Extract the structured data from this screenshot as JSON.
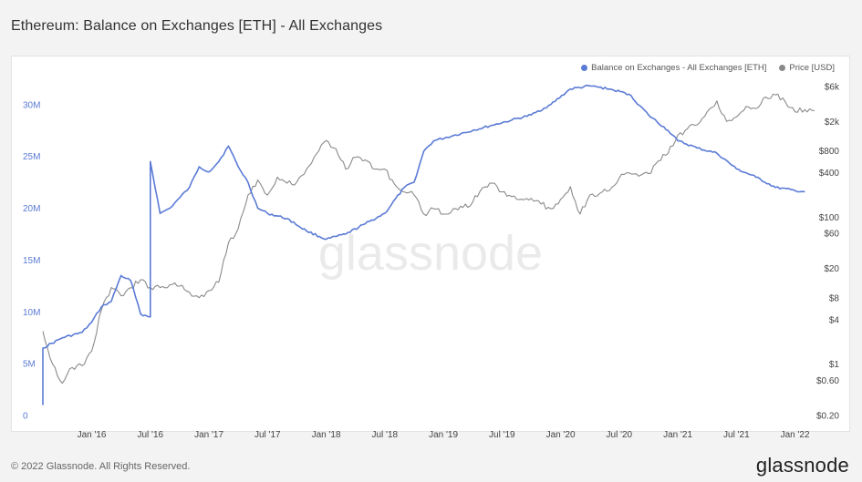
{
  "header": {
    "title": "Ethereum: Balance on Exchanges [ETH] - All Exchanges"
  },
  "footer": {
    "copyright": "© 2022 Glassnode. All Rights Reserved.",
    "logo_text": "glassnode"
  },
  "watermark": "glassnode",
  "chart_data": {
    "type": "line",
    "title": "Ethereum: Balance on Exchanges [ETH] - All Exchanges",
    "x_ticks": [
      "Jan '16",
      "Jul '16",
      "Jan '17",
      "Jul '17",
      "Jan '18",
      "Jul '18",
      "Jan '19",
      "Jul '19",
      "Jan '20",
      "Jul '20",
      "Jan '21",
      "Jul '21",
      "Jan '22"
    ],
    "x_range": [
      "2015-08",
      "2022-03"
    ],
    "y_left": {
      "ticks": [
        "0",
        "5M",
        "10M",
        "15M",
        "20M",
        "25M",
        "30M"
      ],
      "ylim": [
        0,
        32000000
      ],
      "color": "#5b7bd5"
    },
    "y_right": {
      "scale": "log",
      "ticks": [
        "$0.20",
        "$0.60",
        "$1",
        "$4",
        "$8",
        "$20",
        "$60",
        "$100",
        "$400",
        "$800",
        "$2k",
        "$6k"
      ],
      "tick_values": [
        0.2,
        0.6,
        1,
        4,
        8,
        20,
        60,
        100,
        400,
        800,
        2000,
        6000
      ],
      "ylim": [
        0.2,
        6500
      ]
    },
    "legend": {
      "placement": "top-right"
    },
    "grid": false,
    "series": [
      {
        "name": "Balance on Exchanges - All Exchanges [ETH]",
        "axis": "left",
        "color": "#5b7bd5",
        "points": [
          [
            "2015-08",
            1000000
          ],
          [
            "2015-08",
            6500000
          ],
          [
            "2015-10",
            7500000
          ],
          [
            "2015-12",
            8000000
          ],
          [
            "2016-01",
            9000000
          ],
          [
            "2016-02",
            10500000
          ],
          [
            "2016-03",
            11000000
          ],
          [
            "2016-04",
            13500000
          ],
          [
            "2016-05",
            13000000
          ],
          [
            "2016-06",
            9800000
          ],
          [
            "2016-07",
            9500000
          ],
          [
            "2016-07",
            24500000
          ],
          [
            "2016-08",
            19500000
          ],
          [
            "2016-09",
            20000000
          ],
          [
            "2016-10",
            21000000
          ],
          [
            "2016-11",
            22000000
          ],
          [
            "2016-12",
            24000000
          ],
          [
            "2017-01",
            23500000
          ],
          [
            "2017-02",
            24500000
          ],
          [
            "2017-03",
            26000000
          ],
          [
            "2017-04",
            24000000
          ],
          [
            "2017-05",
            22500000
          ],
          [
            "2017-06",
            20000000
          ],
          [
            "2017-07",
            19500000
          ],
          [
            "2017-09",
            19000000
          ],
          [
            "2017-11",
            17800000
          ],
          [
            "2018-01",
            17000000
          ],
          [
            "2018-03",
            17500000
          ],
          [
            "2018-05",
            18500000
          ],
          [
            "2018-07",
            19500000
          ],
          [
            "2018-09",
            22000000
          ],
          [
            "2018-10",
            22500000
          ],
          [
            "2018-11",
            25500000
          ],
          [
            "2018-12",
            26500000
          ],
          [
            "2019-02",
            27000000
          ],
          [
            "2019-04",
            27500000
          ],
          [
            "2019-06",
            28000000
          ],
          [
            "2019-08",
            28500000
          ],
          [
            "2019-10",
            29000000
          ],
          [
            "2019-12",
            30000000
          ],
          [
            "2020-02",
            31500000
          ],
          [
            "2020-04",
            31800000
          ],
          [
            "2020-06",
            31500000
          ],
          [
            "2020-08",
            31000000
          ],
          [
            "2020-10",
            29000000
          ],
          [
            "2020-12",
            27500000
          ],
          [
            "2021-01",
            26500000
          ],
          [
            "2021-03",
            25800000
          ],
          [
            "2021-05",
            25300000
          ],
          [
            "2021-07",
            23800000
          ],
          [
            "2021-09",
            23000000
          ],
          [
            "2021-11",
            22000000
          ],
          [
            "2022-01",
            21700000
          ],
          [
            "2022-02",
            21600000
          ]
        ]
      },
      {
        "name": "Price [USD]",
        "axis": "right",
        "color": "#8a8a8a",
        "points": [
          [
            "2015-08",
            2.8
          ],
          [
            "2015-09",
            1.0
          ],
          [
            "2015-10",
            0.55
          ],
          [
            "2015-11",
            0.9
          ],
          [
            "2015-12",
            0.95
          ],
          [
            "2016-01",
            1.5
          ],
          [
            "2016-02",
            5.5
          ],
          [
            "2016-03",
            11
          ],
          [
            "2016-04",
            8.5
          ],
          [
            "2016-05",
            11
          ],
          [
            "2016-06",
            14
          ],
          [
            "2016-07",
            11
          ],
          [
            "2016-08",
            11
          ],
          [
            "2016-09",
            12
          ],
          [
            "2016-10",
            11.5
          ],
          [
            "2016-11",
            9.5
          ],
          [
            "2016-12",
            8
          ],
          [
            "2017-01",
            10
          ],
          [
            "2017-02",
            13
          ],
          [
            "2017-03",
            45
          ],
          [
            "2017-04",
            70
          ],
          [
            "2017-05",
            200
          ],
          [
            "2017-06",
            320
          ],
          [
            "2017-07",
            200
          ],
          [
            "2017-08",
            350
          ],
          [
            "2017-09",
            290
          ],
          [
            "2017-10",
            300
          ],
          [
            "2017-11",
            450
          ],
          [
            "2017-12",
            720
          ],
          [
            "2018-01",
            1100
          ],
          [
            "2018-02",
            850
          ],
          [
            "2018-03",
            450
          ],
          [
            "2018-04",
            650
          ],
          [
            "2018-05",
            600
          ],
          [
            "2018-06",
            450
          ],
          [
            "2018-07",
            450
          ],
          [
            "2018-08",
            280
          ],
          [
            "2018-09",
            220
          ],
          [
            "2018-10",
            200
          ],
          [
            "2018-11",
            110
          ],
          [
            "2018-12",
            130
          ],
          [
            "2019-01",
            110
          ],
          [
            "2019-02",
            130
          ],
          [
            "2019-03",
            135
          ],
          [
            "2019-04",
            160
          ],
          [
            "2019-05",
            250
          ],
          [
            "2019-06",
            290
          ],
          [
            "2019-07",
            220
          ],
          [
            "2019-08",
            190
          ],
          [
            "2019-09",
            175
          ],
          [
            "2019-10",
            180
          ],
          [
            "2019-11",
            150
          ],
          [
            "2019-12",
            130
          ],
          [
            "2020-01",
            175
          ],
          [
            "2020-02",
            260
          ],
          [
            "2020-03",
            110
          ],
          [
            "2020-04",
            200
          ],
          [
            "2020-05",
            210
          ],
          [
            "2020-06",
            230
          ],
          [
            "2020-07",
            340
          ],
          [
            "2020-08",
            400
          ],
          [
            "2020-09",
            360
          ],
          [
            "2020-10",
            390
          ],
          [
            "2020-11",
            580
          ],
          [
            "2020-12",
            730
          ],
          [
            "2021-01",
            1300
          ],
          [
            "2021-02",
            1600
          ],
          [
            "2021-03",
            1800
          ],
          [
            "2021-04",
            2700
          ],
          [
            "2021-05",
            3800
          ],
          [
            "2021-06",
            2000
          ],
          [
            "2021-07",
            2300
          ],
          [
            "2021-08",
            3200
          ],
          [
            "2021-09",
            3000
          ],
          [
            "2021-10",
            4300
          ],
          [
            "2021-11",
            4600
          ],
          [
            "2021-12",
            3700
          ],
          [
            "2022-01",
            2700
          ],
          [
            "2022-02",
            2900
          ],
          [
            "2022-03",
            2800
          ]
        ]
      }
    ]
  }
}
